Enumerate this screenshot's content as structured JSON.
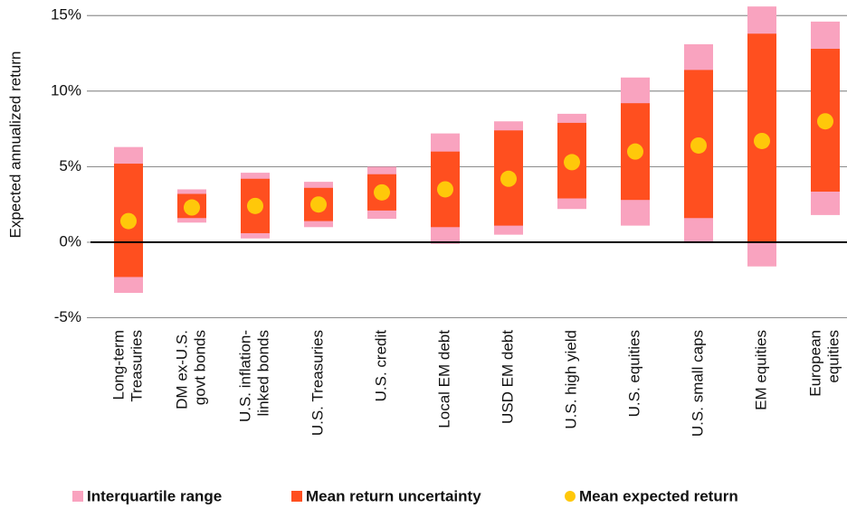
{
  "chart_data": {
    "type": "range",
    "ylabel": "Expected annualized return",
    "categories": [
      [
        "Long-term",
        "Treasuries"
      ],
      [
        "DM ex-U.S.",
        "govt bonds"
      ],
      [
        "U.S. inflation-",
        "linked bonds"
      ],
      [
        "U.S. Treasuries"
      ],
      [
        "U.S. credit"
      ],
      [
        "Local EM debt"
      ],
      [
        "USD EM debt"
      ],
      [
        "U.S. high yield"
      ],
      [
        "U.S. equities"
      ],
      [
        "U.S. small caps"
      ],
      [
        "EM equities"
      ],
      [
        "European",
        "equities"
      ]
    ],
    "series": [
      {
        "name": "Interquartile range",
        "color": "#f9a3bf",
        "low": [
          -3.35,
          1.3,
          0.25,
          1.0,
          1.55,
          -0.1,
          0.5,
          2.2,
          1.1,
          0,
          -1.6,
          1.8
        ],
        "high": [
          6.3,
          3.5,
          4.6,
          4.0,
          5.0,
          7.2,
          8.0,
          8.5,
          10.9,
          13.1,
          15.6,
          14.6
        ]
      },
      {
        "name": "Mean return uncertainty",
        "color": "#ff4f1f",
        "low": [
          -2.3,
          1.6,
          0.6,
          1.4,
          2.1,
          1.0,
          1.1,
          2.9,
          2.8,
          1.6,
          0,
          3.35
        ],
        "high": [
          5.2,
          3.2,
          4.2,
          3.6,
          4.5,
          6.0,
          7.4,
          7.9,
          9.2,
          11.4,
          13.8,
          12.8
        ]
      },
      {
        "name": "Mean expected return",
        "color": "#ffc80a",
        "values": [
          1.4,
          2.3,
          2.4,
          2.5,
          3.3,
          3.5,
          4.2,
          5.3,
          6.0,
          6.4,
          6.7,
          8.0
        ]
      }
    ],
    "ylim": [
      -5,
      15.7
    ],
    "yticks": [
      {
        "value": -5,
        "label": "-5%"
      },
      {
        "value": 0,
        "label": "0%"
      },
      {
        "value": 5,
        "label": "5%"
      },
      {
        "value": 10,
        "label": "10%"
      },
      {
        "value": 15,
        "label": "15%"
      }
    ],
    "grid": true
  }
}
